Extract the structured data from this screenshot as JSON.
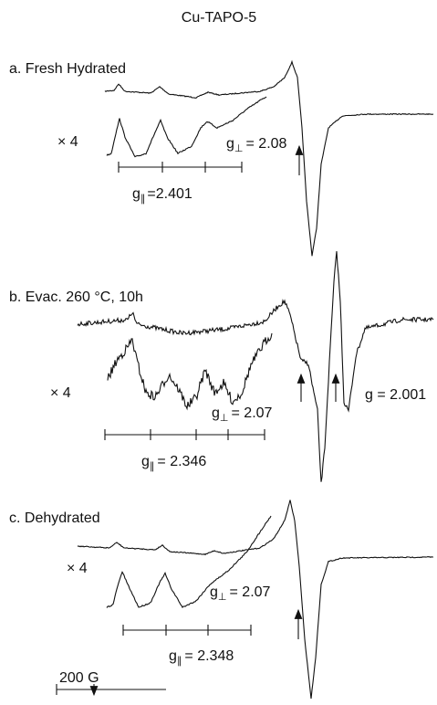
{
  "title": "Cu-TAPO-5",
  "panels": [
    {
      "label": "a. Fresh Hydrated",
      "factor": "× 4",
      "g_perp": {
        "symbol": "g",
        "sub": "⊥",
        "value": "= 2.08"
      },
      "g_par": {
        "symbol": "g",
        "sub": "∥",
        "value": "=2.401"
      }
    },
    {
      "label": "b. Evac. 260 °C, 10h",
      "factor": "× 4",
      "g_perp": {
        "symbol": "g",
        "sub": "⊥",
        "value": "= 2.07"
      },
      "g_par": {
        "symbol": "g",
        "sub": "∥",
        "value": "= 2.346"
      }
    },
    {
      "label": "c. Dehydrated",
      "factor": "× 4",
      "g_perp": {
        "symbol": "g",
        "sub": "⊥",
        "value": "= 2.07"
      },
      "g_par": {
        "symbol": "g",
        "sub": "∥",
        "value": "= 2.348"
      }
    }
  ],
  "g_free": "g = 2.001",
  "scale": "200 G"
}
